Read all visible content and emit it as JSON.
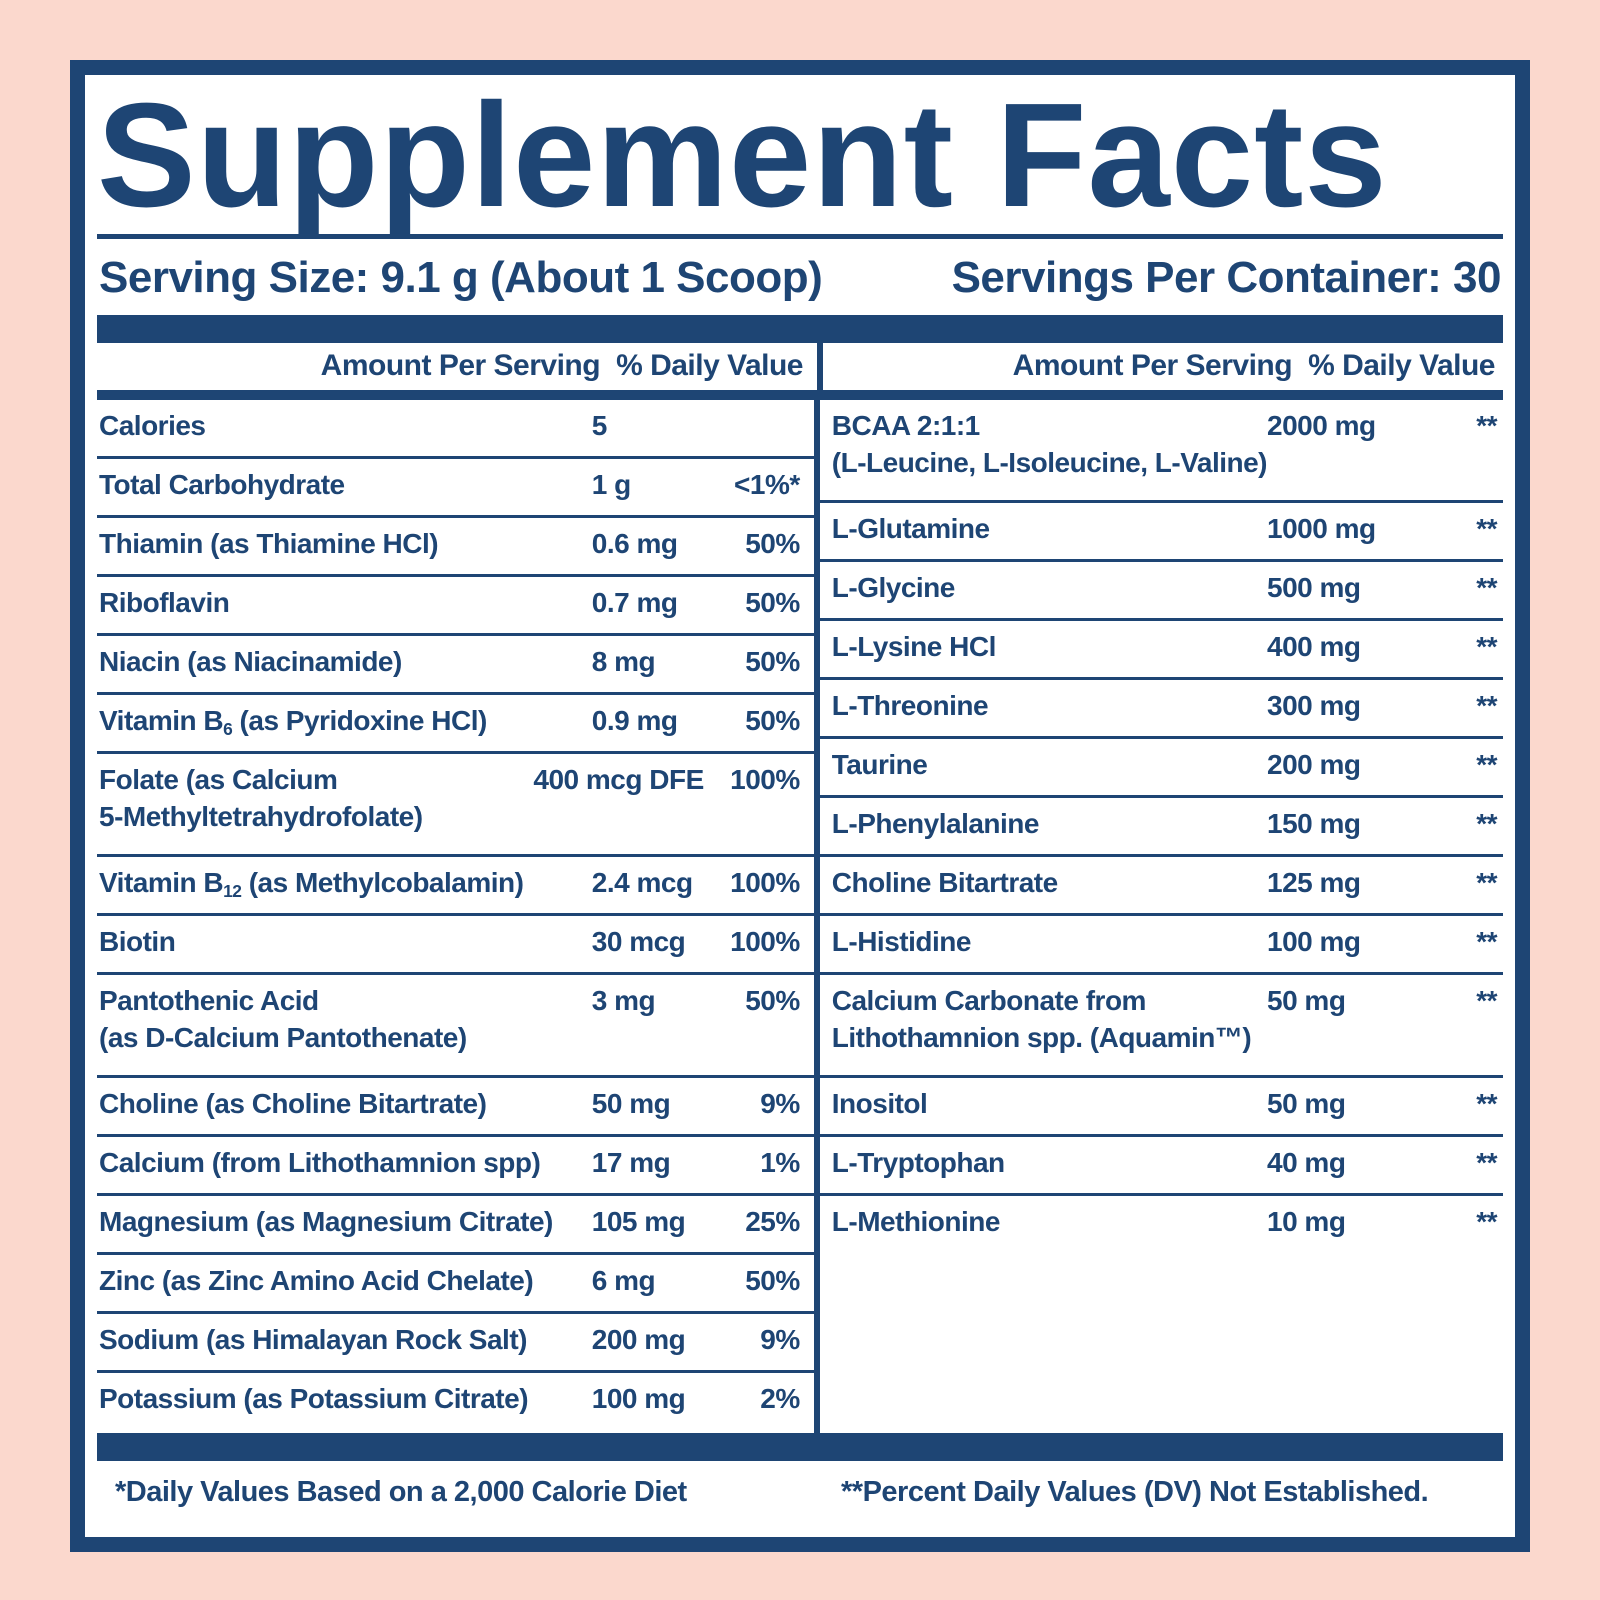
{
  "colors": {
    "navy": "#1e4574",
    "pink_background": "#fbd8cd",
    "panel_background": "#ffffff"
  },
  "title": "Supplement Facts",
  "serving_info": {
    "serving_size": "Serving Size: 9.1 g (About 1 Scoop)",
    "servings_per_container": "Servings Per Container: 30"
  },
  "column_header": {
    "amount": "Amount Per Serving",
    "daily_value": "% Daily Value"
  },
  "left_column": {
    "rows": [
      {
        "name": "Calories",
        "amount": "5",
        "dv": ""
      },
      {
        "name": "Total Carbohydrate",
        "amount": "1 g",
        "dv": "<1%*"
      },
      {
        "name": "Thiamin (as Thiamine HCl)",
        "amount": "0.6 mg",
        "dv": "50%"
      },
      {
        "name": "Riboflavin",
        "amount": "0.7 mg",
        "dv": "50%"
      },
      {
        "name": "Niacin (as Niacinamide)",
        "amount": "8 mg",
        "dv": "50%"
      },
      {
        "name": "Vitamin B_{6} (as Pyridoxine HCl)",
        "amount": "0.9 mg",
        "dv": "50%"
      },
      {
        "name": "Folate (as Calcium\n5-Methyltetrahydrofolate)",
        "amount": "400 mcg DFE",
        "dv": "100%"
      },
      {
        "name": "Vitamin B_{12} (as Methylcobalamin)",
        "amount": "2.4 mcg",
        "dv": "100%"
      },
      {
        "name": "Biotin",
        "amount": "30 mcg",
        "dv": "100%"
      },
      {
        "name": "Pantothenic Acid\n(as D-Calcium Pantothenate)",
        "amount": "3 mg",
        "dv": "50%"
      },
      {
        "name": "Choline (as Choline Bitartrate)",
        "amount": "50 mg",
        "dv": "9%"
      },
      {
        "name": "Calcium (from Lithothamnion spp)",
        "amount": "17 mg",
        "dv": "1%"
      },
      {
        "name": "Magnesium (as Magnesium Citrate)",
        "amount": "105 mg",
        "dv": "25%"
      },
      {
        "name": "Zinc (as Zinc Amino Acid Chelate)",
        "amount": "6 mg",
        "dv": "50%"
      },
      {
        "name": "Sodium (as Himalayan Rock Salt)",
        "amount": "200 mg",
        "dv": "9%"
      },
      {
        "name": "Potassium (as Potassium Citrate)",
        "amount": "100 mg",
        "dv": "2%"
      }
    ]
  },
  "right_column": {
    "rows": [
      {
        "name": "BCAA 2:1:1\n(L-Leucine, L-Isoleucine, L-Valine)",
        "amount": "2000 mg",
        "dv": "**"
      },
      {
        "name": "L-Glutamine",
        "amount": "1000 mg",
        "dv": "**"
      },
      {
        "name": "L-Glycine",
        "amount": "500 mg",
        "dv": "**"
      },
      {
        "name": "L-Lysine HCl",
        "amount": "400 mg",
        "dv": "**"
      },
      {
        "name": "L-Threonine",
        "amount": "300 mg",
        "dv": "**"
      },
      {
        "name": "Taurine",
        "amount": "200 mg",
        "dv": "**"
      },
      {
        "name": "L-Phenylalanine",
        "amount": "150 mg",
        "dv": "**"
      },
      {
        "name": "Choline Bitartrate",
        "amount": "125 mg",
        "dv": "**"
      },
      {
        "name": "L-Histidine",
        "amount": "100 mg",
        "dv": "**"
      },
      {
        "name": "Calcium Carbonate from\nLithothamnion spp. (Aquamin™)",
        "amount": "50 mg",
        "dv": "**"
      },
      {
        "name": "Inositol",
        "amount": "50 mg",
        "dv": "**"
      },
      {
        "name": "L-Tryptophan",
        "amount": "40 mg",
        "dv": "**"
      },
      {
        "name": "L-Methionine",
        "amount": "10 mg",
        "dv": "**"
      }
    ]
  },
  "footnotes": {
    "left": "*Daily Values Based on a 2,000 Calorie Diet",
    "right": "**Percent Daily Values (DV) Not Established."
  }
}
